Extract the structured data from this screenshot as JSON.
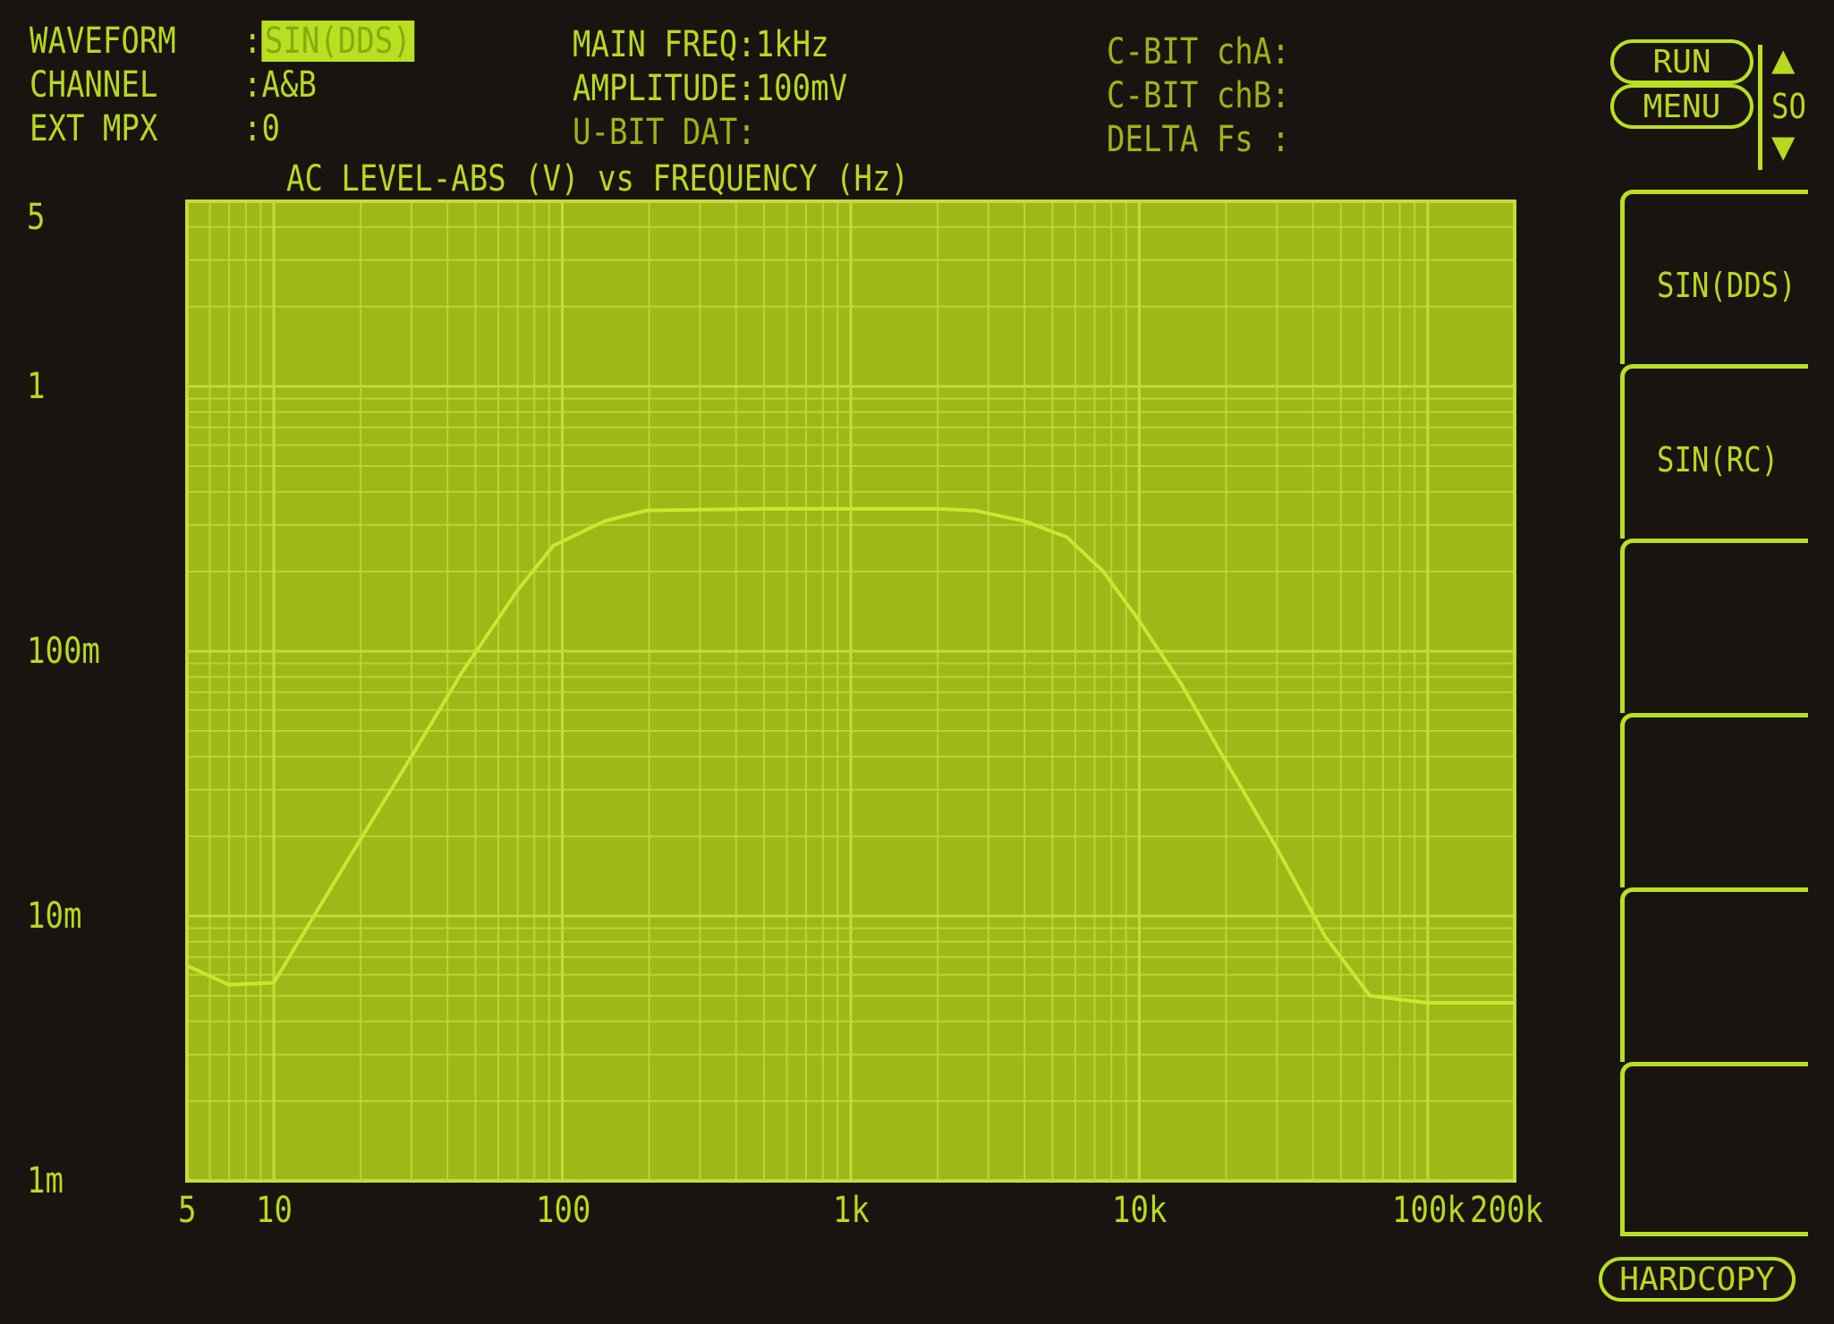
{
  "header": {
    "waveform_label": "WAVEFORM",
    "waveform_value": "SIN(DDS)",
    "channel_label": "CHANNEL",
    "channel_value": "A&B",
    "ext_mpx_label": "EXT MPX",
    "ext_mpx_value": "0",
    "main_freq": "MAIN FREQ:1kHz",
    "amplitude": "AMPLITUDE:100mV",
    "u_bit": "U-BIT DAT:",
    "cbit_a": "C-BIT chA:",
    "cbit_b": "C-BIT chB:",
    "delta_fs": "DELTA Fs :"
  },
  "controls": {
    "run": "RUN",
    "menu": "MENU",
    "so": "SO",
    "hardcopy": "HARDCOPY"
  },
  "softkeys": [
    {
      "label": "SIN(DDS)"
    },
    {
      "label": "SIN(RC)"
    },
    {
      "label": ""
    },
    {
      "label": ""
    },
    {
      "label": ""
    },
    {
      "label": ""
    }
  ],
  "colors": {
    "trace": "#c8e830",
    "plot_bg": "#9db817",
    "grid": "#c4dc3a",
    "screen_bg": "#1a1410"
  },
  "chart_data": {
    "type": "line",
    "title": "AC LEVEL-ABS (V) vs FREQUENCY (Hz)",
    "x_scale": "log",
    "y_scale": "log",
    "xlim": [
      5,
      200000
    ],
    "ylim": [
      0.001,
      5
    ],
    "grid": true,
    "x_ticks": [
      {
        "v": 5,
        "label": "5"
      },
      {
        "v": 10,
        "label": "10"
      },
      {
        "v": 100,
        "label": "100"
      },
      {
        "v": 1000,
        "label": "1k"
      },
      {
        "v": 10000,
        "label": "10k"
      },
      {
        "v": 100000,
        "label": "100k"
      },
      {
        "v": 200000,
        "label": "200k"
      }
    ],
    "y_ticks": [
      {
        "v": 5,
        "label": "5"
      },
      {
        "v": 1,
        "label": "1"
      },
      {
        "v": 0.1,
        "label": "100m"
      },
      {
        "v": 0.01,
        "label": "10m"
      },
      {
        "v": 0.001,
        "label": "1m"
      }
    ],
    "x": [
      5,
      7,
      10,
      17.5,
      30,
      44.5,
      70,
      93,
      140,
      196,
      500,
      1000,
      2000,
      2680,
      4000,
      5600,
      7500,
      10000,
      14000,
      19000,
      30000,
      44000,
      63000,
      100000,
      200000
    ],
    "y": [
      0.0065,
      0.0055,
      0.0056,
      0.0154,
      0.04,
      0.082,
      0.17,
      0.25,
      0.31,
      0.34,
      0.345,
      0.345,
      0.345,
      0.34,
      0.31,
      0.27,
      0.2,
      0.13,
      0.075,
      0.042,
      0.018,
      0.0084,
      0.005,
      0.0047,
      0.0047
    ]
  }
}
